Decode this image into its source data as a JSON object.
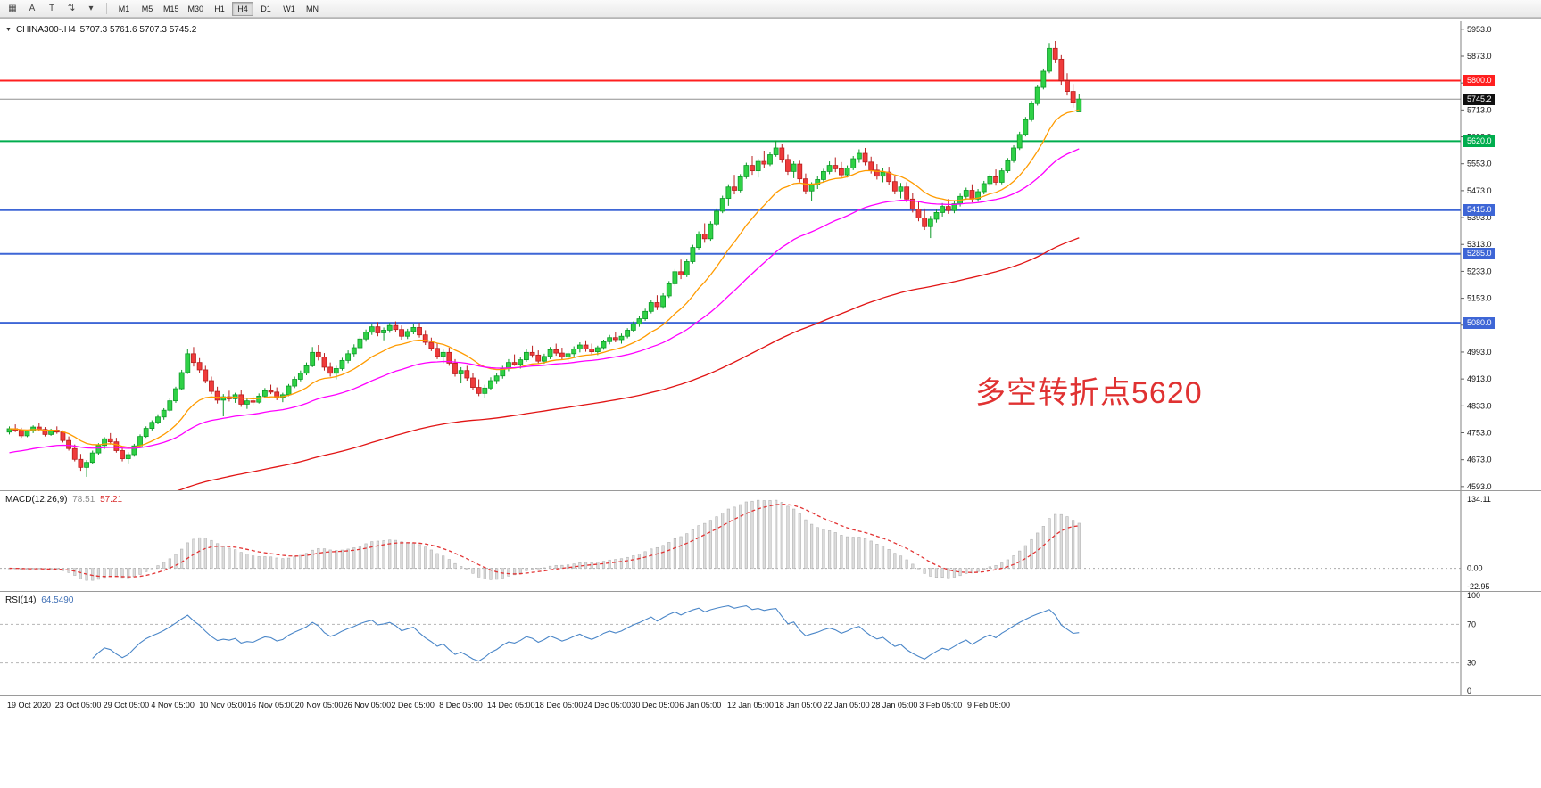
{
  "toolbar": {
    "icons": [
      {
        "name": "chart-type-icon",
        "glyph": "▦"
      },
      {
        "name": "cursor-text-icon",
        "glyph": "A"
      },
      {
        "name": "text-tool-icon",
        "glyph": "T"
      },
      {
        "name": "scale-tool-icon",
        "glyph": "⇅"
      },
      {
        "name": "dropdown-caret-icon",
        "glyph": "▾"
      }
    ],
    "timeframes": [
      "M1",
      "M5",
      "M15",
      "M30",
      "H1",
      "H4",
      "D1",
      "W1",
      "MN"
    ],
    "active_timeframe": "H4"
  },
  "chart": {
    "dropdown_glyph": "▼",
    "title_symbol": "CHINA300-.H4",
    "title_ohlc": "5707.3 5761.6 5707.3 5745.2",
    "annotation": {
      "text": "多空转折点5620",
      "color": "#e03232"
    },
    "colors": {
      "up_fill": "#2fd146",
      "up_stroke": "#0c9a27",
      "down_fill": "#ef3b3b",
      "down_stroke": "#b81d1d",
      "ma_fast": "#ff9b00",
      "ma_mid": "#ff00ff",
      "ma_slow": "#e11414",
      "axis": "#808080",
      "current_price_line": "#909090"
    },
    "price_axis": {
      "ticks": [
        5953,
        5873,
        5793,
        5713,
        5633,
        5553,
        5473,
        5393,
        5313,
        5233,
        5153,
        5073,
        4993,
        4913,
        4833,
        4753,
        4673,
        4593
      ]
    },
    "hlines": [
      {
        "price": 5800,
        "badge": "5800.0",
        "color": "#ff1f1f",
        "width": 2
      },
      {
        "price": 5620,
        "badge": "5620.0",
        "color": "#00ad4e",
        "width": 2
      },
      {
        "price": 5415,
        "badge": "5415.0",
        "color": "#3e66d6",
        "width": 2
      },
      {
        "price": 5285,
        "badge": "5285.0",
        "color": "#3e66d6",
        "width": 2
      },
      {
        "price": 5080,
        "badge": "5080.0",
        "color": "#3e66d6",
        "width": 2
      }
    ],
    "current_price": {
      "value": 5745.2,
      "badge": "5745.2",
      "color": "#101010"
    }
  },
  "macd_panel": {
    "label": "MACD(12,26,9)",
    "value_main": "78.51",
    "value_signal": "57.21",
    "axis": [
      "134.11",
      "0.00",
      "-22.95"
    ]
  },
  "rsi_panel": {
    "label": "RSI(14)",
    "value": "64.5490",
    "axis": [
      "100",
      "70",
      "30",
      "0"
    ]
  },
  "time_axis": {
    "labels": [
      "19 Oct 2020",
      "23 Oct 05:00",
      "29 Oct 05:00",
      "4 Nov 05:00",
      "10 Nov 05:00",
      "16 Nov 05:00",
      "20 Nov 05:00",
      "26 Nov 05:00",
      "2 Dec 05:00",
      "8 Dec 05:00",
      "14 Dec 05:00",
      "18 Dec 05:00",
      "24 Dec 05:00",
      "30 Dec 05:00",
      "6 Jan 05:00",
      "12 Jan 05:00",
      "18 Jan 05:00",
      "22 Jan 05:00",
      "28 Jan 05:00",
      "3 Feb 05:00",
      "9 Feb 05:00"
    ]
  },
  "chart_data": {
    "type": "candlestick",
    "symbol": "CHINA300-",
    "timeframe": "H4",
    "title": "CHINA300-.H4",
    "y_range": [
      4582,
      5979
    ],
    "last_ohlc": {
      "open": 5707.3,
      "high": 5761.6,
      "low": 5707.3,
      "close": 5745.2
    },
    "overlays": [
      {
        "name": "ma-fast",
        "color": "#ff9b00"
      },
      {
        "name": "ma-mid",
        "color": "#ff00ff"
      },
      {
        "name": "ma-slow",
        "color": "#e11414"
      }
    ],
    "indicators": [
      {
        "name": "MACD",
        "params": [
          12,
          26,
          9
        ],
        "values": [
          78.51,
          57.21
        ],
        "axis_range": [
          -22.95,
          134.11
        ]
      },
      {
        "name": "RSI",
        "params": [
          14
        ],
        "value": 64.549,
        "levels": [
          30,
          70
        ]
      }
    ],
    "levels": [
      5800,
      5620,
      5415,
      5285,
      5080
    ],
    "candles": [
      [
        4755,
        4772,
        4748,
        4765
      ],
      [
        4765,
        4778,
        4755,
        4760
      ],
      [
        4760,
        4768,
        4738,
        4744
      ],
      [
        4744,
        4762,
        4740,
        4758
      ],
      [
        4758,
        4775,
        4752,
        4770
      ],
      [
        4770,
        4781,
        4758,
        4763
      ],
      [
        4763,
        4770,
        4742,
        4748
      ],
      [
        4748,
        4765,
        4744,
        4761
      ],
      [
        4761,
        4772,
        4750,
        4755
      ],
      [
        4755,
        4760,
        4724,
        4730
      ],
      [
        4730,
        4742,
        4700,
        4706
      ],
      [
        4706,
        4718,
        4668,
        4674
      ],
      [
        4674,
        4690,
        4640,
        4650
      ],
      [
        4650,
        4672,
        4622,
        4665
      ],
      [
        4665,
        4700,
        4660,
        4693
      ],
      [
        4693,
        4722,
        4688,
        4715
      ],
      [
        4715,
        4740,
        4705,
        4735
      ],
      [
        4735,
        4752,
        4718,
        4726
      ],
      [
        4726,
        4738,
        4694,
        4700
      ],
      [
        4700,
        4712,
        4668,
        4676
      ],
      [
        4676,
        4695,
        4662,
        4688
      ],
      [
        4688,
        4720,
        4682,
        4714
      ],
      [
        4714,
        4748,
        4710,
        4742
      ],
      [
        4742,
        4772,
        4738,
        4766
      ],
      [
        4766,
        4790,
        4760,
        4784
      ],
      [
        4784,
        4808,
        4778,
        4800
      ],
      [
        4800,
        4826,
        4792,
        4820
      ],
      [
        4820,
        4855,
        4815,
        4848
      ],
      [
        4848,
        4890,
        4842,
        4884
      ],
      [
        4884,
        4940,
        4880,
        4932
      ],
      [
        4932,
        5002,
        4928,
        4988
      ],
      [
        4988,
        5008,
        4950,
        4962
      ],
      [
        4962,
        4975,
        4930,
        4940
      ],
      [
        4940,
        4952,
        4900,
        4908
      ],
      [
        4908,
        4920,
        4868,
        4876
      ],
      [
        4876,
        4890,
        4840,
        4850
      ],
      [
        4850,
        4868,
        4802,
        4860
      ],
      [
        4860,
        4878,
        4846,
        4854
      ],
      [
        4854,
        4872,
        4842,
        4866
      ],
      [
        4866,
        4880,
        4830,
        4838
      ],
      [
        4838,
        4856,
        4824,
        4848
      ],
      [
        4848,
        4862,
        4836,
        4844
      ],
      [
        4844,
        4870,
        4840,
        4862
      ],
      [
        4862,
        4886,
        4856,
        4878
      ],
      [
        4878,
        4896,
        4868,
        4874
      ],
      [
        4874,
        4888,
        4850,
        4858
      ],
      [
        4858,
        4872,
        4844,
        4866
      ],
      [
        4866,
        4898,
        4862,
        4892
      ],
      [
        4892,
        4920,
        4886,
        4912
      ],
      [
        4912,
        4938,
        4906,
        4930
      ],
      [
        4930,
        4962,
        4924,
        4952
      ],
      [
        4952,
        5008,
        4948,
        4992
      ],
      [
        4992,
        5014,
        4968,
        4978
      ],
      [
        4978,
        4990,
        4938,
        4948
      ],
      [
        4948,
        4962,
        4920,
        4930
      ],
      [
        4930,
        4952,
        4912,
        4944
      ],
      [
        4944,
        4976,
        4938,
        4968
      ],
      [
        4968,
        4998,
        4960,
        4988
      ],
      [
        4988,
        5016,
        4980,
        5006
      ],
      [
        5006,
        5040,
        5000,
        5032
      ],
      [
        5032,
        5060,
        5024,
        5052
      ],
      [
        5052,
        5078,
        5044,
        5068
      ],
      [
        5068,
        5082,
        5040,
        5050
      ],
      [
        5050,
        5066,
        5028,
        5058
      ],
      [
        5058,
        5080,
        5050,
        5072
      ],
      [
        5072,
        5084,
        5052,
        5060
      ],
      [
        5060,
        5072,
        5030,
        5040
      ],
      [
        5040,
        5062,
        5032,
        5054
      ],
      [
        5054,
        5076,
        5046,
        5066
      ],
      [
        5066,
        5080,
        5036,
        5044
      ],
      [
        5044,
        5058,
        5014,
        5022
      ],
      [
        5022,
        5036,
        4996,
        5004
      ],
      [
        5004,
        5018,
        4972,
        4980
      ],
      [
        4980,
        5002,
        4960,
        4992
      ],
      [
        4992,
        5006,
        4952,
        4960
      ],
      [
        4960,
        4972,
        4920,
        4928
      ],
      [
        4928,
        4948,
        4900,
        4938
      ],
      [
        4938,
        4952,
        4908,
        4916
      ],
      [
        4916,
        4930,
        4880,
        4888
      ],
      [
        4888,
        4912,
        4862,
        4870
      ],
      [
        4870,
        4896,
        4856,
        4886
      ],
      [
        4886,
        4918,
        4880,
        4908
      ],
      [
        4908,
        4930,
        4898,
        4922
      ],
      [
        4922,
        4952,
        4914,
        4944
      ],
      [
        4944,
        4972,
        4936,
        4962
      ],
      [
        4962,
        4986,
        4952,
        4956
      ],
      [
        4956,
        4978,
        4944,
        4970
      ],
      [
        4970,
        5002,
        4964,
        4992
      ],
      [
        4992,
        5012,
        4976,
        4984
      ],
      [
        4984,
        4998,
        4958,
        4966
      ],
      [
        4966,
        4988,
        4958,
        4980
      ],
      [
        4980,
        5008,
        4972,
        5000
      ],
      [
        5000,
        5018,
        4982,
        4990
      ],
      [
        4990,
        5006,
        4970,
        4978
      ],
      [
        4978,
        4996,
        4964,
        4988
      ],
      [
        4988,
        5010,
        4980,
        5002
      ],
      [
        5002,
        5022,
        4992,
        5014
      ],
      [
        5014,
        5028,
        4994,
        5002
      ],
      [
        5002,
        5018,
        4986,
        4994
      ],
      [
        4994,
        5012,
        4984,
        5006
      ],
      [
        5006,
        5030,
        5000,
        5024
      ],
      [
        5024,
        5044,
        5016,
        5036
      ],
      [
        5036,
        5052,
        5022,
        5030
      ],
      [
        5030,
        5048,
        5018,
        5040
      ],
      [
        5040,
        5064,
        5034,
        5058
      ],
      [
        5058,
        5084,
        5052,
        5076
      ],
      [
        5076,
        5100,
        5068,
        5092
      ],
      [
        5092,
        5122,
        5086,
        5114
      ],
      [
        5114,
        5148,
        5108,
        5140
      ],
      [
        5140,
        5162,
        5118,
        5128
      ],
      [
        5128,
        5168,
        5122,
        5160
      ],
      [
        5160,
        5204,
        5154,
        5196
      ],
      [
        5196,
        5240,
        5190,
        5232
      ],
      [
        5232,
        5268,
        5210,
        5222
      ],
      [
        5222,
        5270,
        5216,
        5262
      ],
      [
        5262,
        5312,
        5256,
        5304
      ],
      [
        5304,
        5352,
        5298,
        5344
      ],
      [
        5344,
        5376,
        5318,
        5330
      ],
      [
        5330,
        5382,
        5324,
        5374
      ],
      [
        5374,
        5420,
        5368,
        5412
      ],
      [
        5412,
        5458,
        5406,
        5450
      ],
      [
        5450,
        5492,
        5428,
        5484
      ],
      [
        5484,
        5520,
        5462,
        5474
      ],
      [
        5474,
        5522,
        5468,
        5514
      ],
      [
        5514,
        5556,
        5508,
        5548
      ],
      [
        5548,
        5576,
        5520,
        5532
      ],
      [
        5532,
        5568,
        5512,
        5560
      ],
      [
        5560,
        5592,
        5540,
        5552
      ],
      [
        5552,
        5588,
        5546,
        5580
      ],
      [
        5580,
        5622,
        5574,
        5600
      ],
      [
        5600,
        5612,
        5556,
        5566
      ],
      [
        5566,
        5580,
        5520,
        5530
      ],
      [
        5530,
        5560,
        5510,
        5552
      ],
      [
        5552,
        5562,
        5498,
        5508
      ],
      [
        5508,
        5524,
        5462,
        5472
      ],
      [
        5472,
        5498,
        5442,
        5490
      ],
      [
        5490,
        5516,
        5478,
        5506
      ],
      [
        5506,
        5538,
        5498,
        5530
      ],
      [
        5530,
        5560,
        5522,
        5548
      ],
      [
        5548,
        5572,
        5528,
        5538
      ],
      [
        5538,
        5558,
        5510,
        5520
      ],
      [
        5520,
        5548,
        5512,
        5540
      ],
      [
        5540,
        5576,
        5534,
        5568
      ],
      [
        5568,
        5596,
        5556,
        5584
      ],
      [
        5584,
        5600,
        5548,
        5558
      ],
      [
        5558,
        5574,
        5524,
        5534
      ],
      [
        5534,
        5552,
        5506,
        5516
      ],
      [
        5516,
        5540,
        5498,
        5528
      ],
      [
        5528,
        5544,
        5490,
        5500
      ],
      [
        5500,
        5518,
        5462,
        5472
      ],
      [
        5472,
        5496,
        5450,
        5484
      ],
      [
        5484,
        5498,
        5438,
        5448
      ],
      [
        5448,
        5466,
        5408,
        5418
      ],
      [
        5418,
        5442,
        5382,
        5392
      ],
      [
        5392,
        5420,
        5356,
        5366
      ],
      [
        5366,
        5398,
        5332,
        5388
      ],
      [
        5388,
        5418,
        5378,
        5408
      ],
      [
        5408,
        5436,
        5396,
        5426
      ],
      [
        5426,
        5448,
        5404,
        5414
      ],
      [
        5414,
        5442,
        5406,
        5434
      ],
      [
        5434,
        5464,
        5426,
        5456
      ],
      [
        5456,
        5482,
        5446,
        5474
      ],
      [
        5474,
        5492,
        5438,
        5448
      ],
      [
        5448,
        5478,
        5440,
        5470
      ],
      [
        5470,
        5502,
        5462,
        5494
      ],
      [
        5494,
        5522,
        5486,
        5514
      ],
      [
        5514,
        5536,
        5488,
        5498
      ],
      [
        5498,
        5540,
        5492,
        5532
      ],
      [
        5532,
        5570,
        5526,
        5562
      ],
      [
        5562,
        5608,
        5556,
        5600
      ],
      [
        5600,
        5648,
        5594,
        5640
      ],
      [
        5640,
        5692,
        5634,
        5684
      ],
      [
        5684,
        5740,
        5678,
        5732
      ],
      [
        5732,
        5788,
        5726,
        5780
      ],
      [
        5780,
        5836,
        5774,
        5828
      ],
      [
        5828,
        5912,
        5822,
        5896
      ],
      [
        5896,
        5918,
        5852,
        5864
      ],
      [
        5864,
        5876,
        5788,
        5800
      ],
      [
        5800,
        5822,
        5756,
        5768
      ],
      [
        5768,
        5790,
        5720,
        5736
      ],
      [
        5707.3,
        5761.6,
        5707.3,
        5745.2
      ]
    ]
  }
}
